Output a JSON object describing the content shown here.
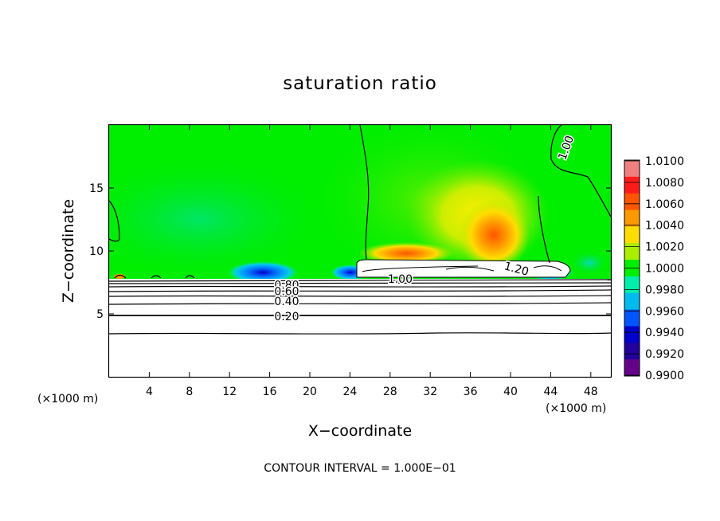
{
  "chart_data": {
    "type": "heatmap",
    "title": "saturation ratio",
    "xlabel": "X−coordinate",
    "ylabel": "Z−coordinate",
    "x_units_left": "(×1000 m)",
    "x_units_right": "(×1000 m)",
    "xlim": [
      0,
      50
    ],
    "ylim": [
      0,
      20
    ],
    "x_ticks": [
      4,
      8,
      12,
      16,
      20,
      24,
      28,
      32,
      36,
      40,
      44,
      48
    ],
    "x_tick_labels": [
      "4",
      "8",
      "12",
      "16",
      "20",
      "24",
      "28",
      "32",
      "36",
      "40",
      "44",
      "48"
    ],
    "y_ticks": [
      5,
      10,
      15
    ],
    "y_tick_labels": [
      "5",
      "10",
      "15"
    ],
    "colorbar": {
      "labels": [
        "1.0100",
        "1.0080",
        "1.0060",
        "1.0040",
        "1.0020",
        "1.0000",
        "0.9980",
        "0.9960",
        "0.9940",
        "0.9920",
        "0.9900"
      ],
      "colors": [
        "#f08080",
        "#ff1a1a",
        "#ff5500",
        "#ff9900",
        "#ffdd00",
        "#aaee00",
        "#00ee00",
        "#00eeaa",
        "#00bbee",
        "#0055ff",
        "#0000cc",
        "#220099",
        "#660088"
      ]
    },
    "contour_labels": [
      {
        "text": "1.00",
        "x": 45.5,
        "y": 18.2
      },
      {
        "text": "1.20",
        "x": 40.6,
        "y": 8.6
      },
      {
        "text": "1.00",
        "x": 29.0,
        "y": 7.8
      },
      {
        "text": "0.80",
        "x": 17.7,
        "y": 7.3
      },
      {
        "text": "0.60",
        "x": 17.7,
        "y": 6.8
      },
      {
        "text": "0.40",
        "x": 17.7,
        "y": 6.0
      },
      {
        "text": "0.20",
        "x": 17.7,
        "y": 4.8
      }
    ],
    "footer": "CONTOUR INTERVAL = 1.000E−01"
  }
}
